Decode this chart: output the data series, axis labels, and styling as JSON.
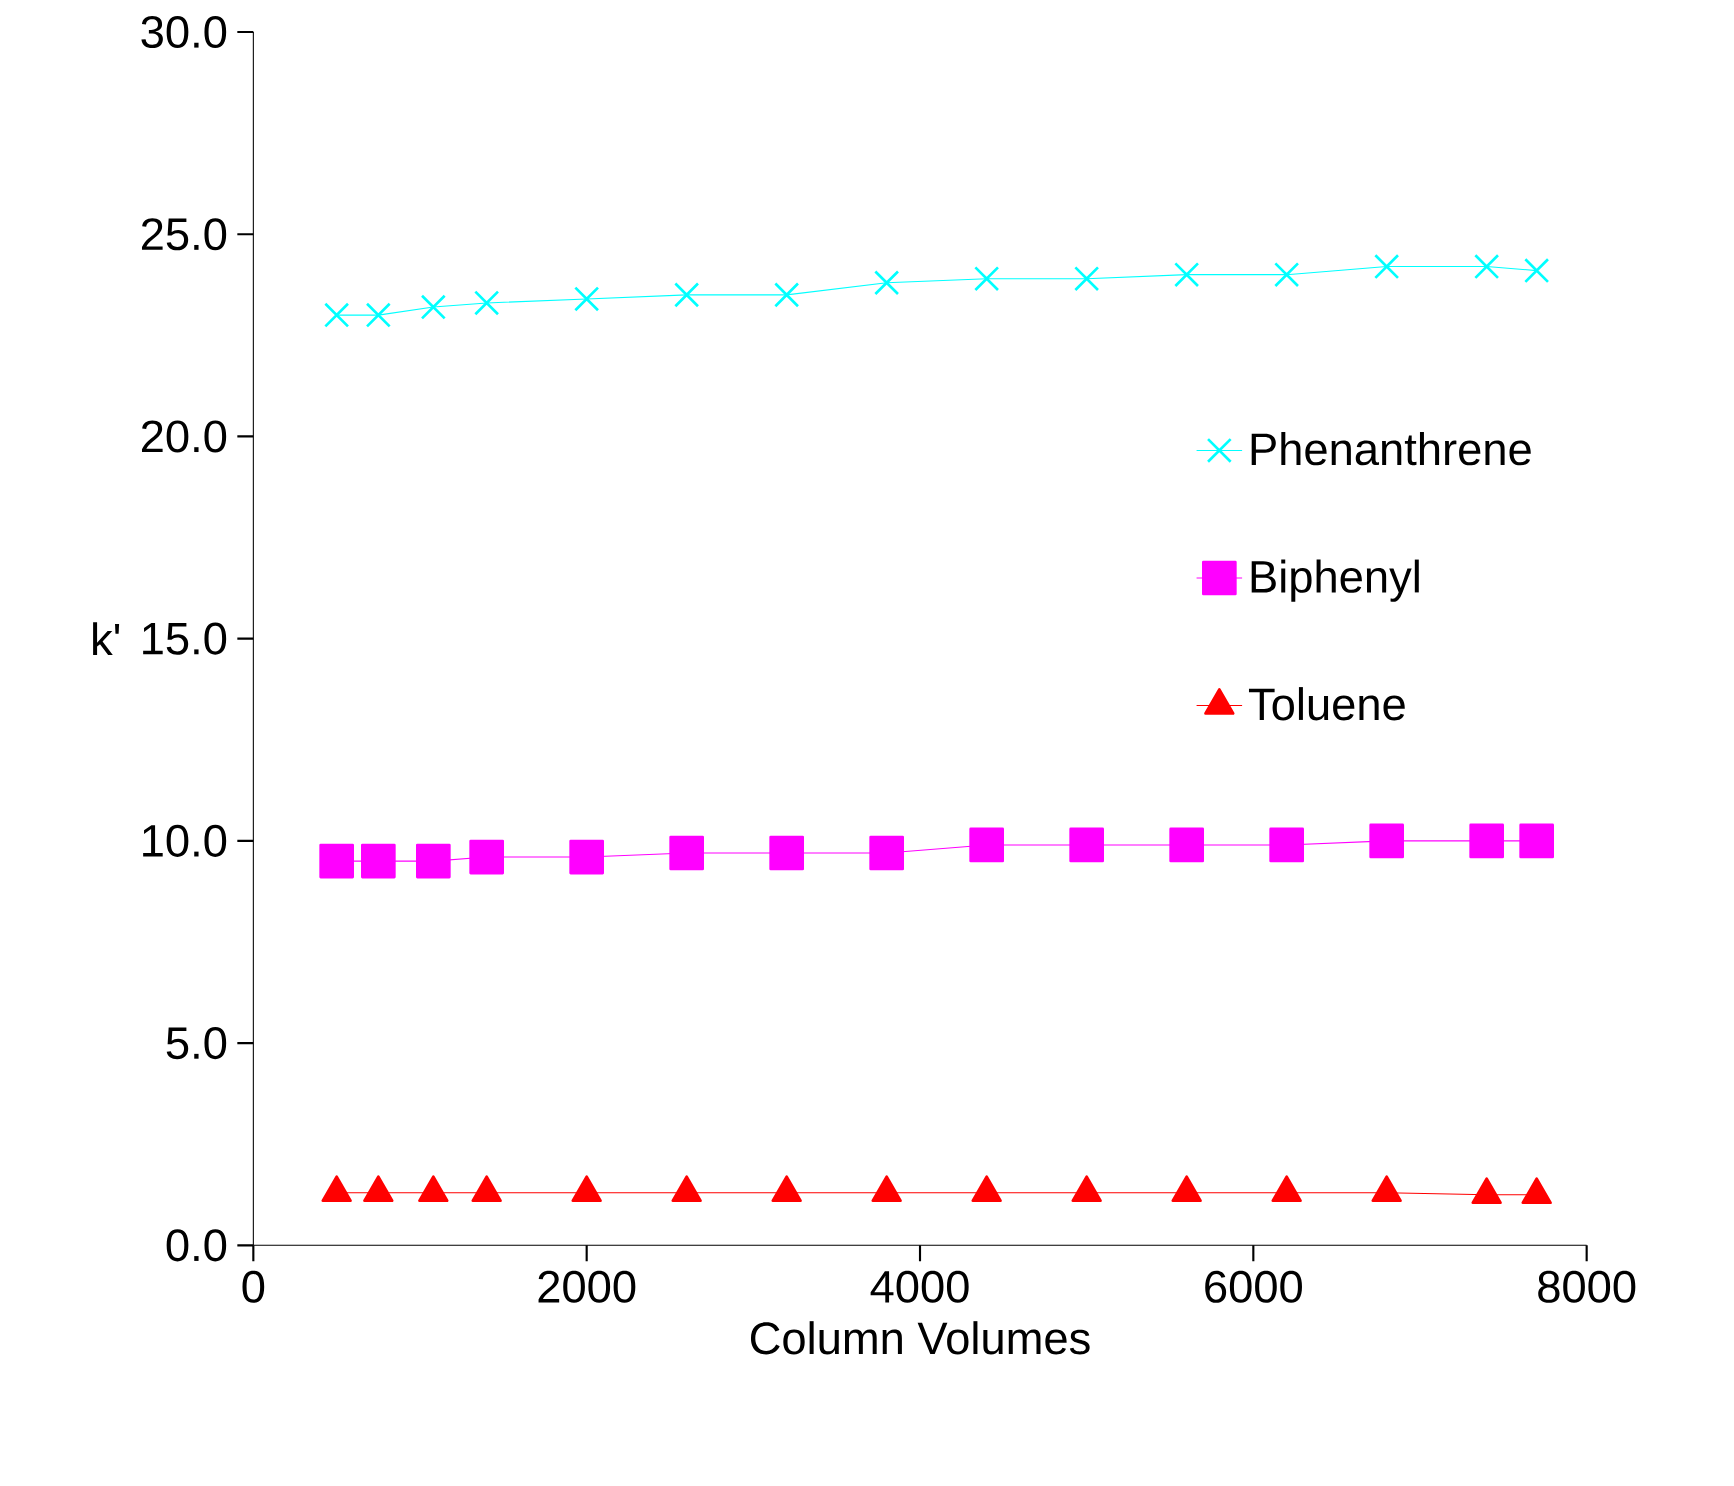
{
  "chart_data": {
    "type": "line",
    "xlabel": "Column Volumes",
    "ylabel": "k'",
    "x": [
      500,
      750,
      1080,
      1400,
      2000,
      2600,
      3200,
      3800,
      4400,
      5000,
      5600,
      6200,
      6800,
      7400,
      7700
    ],
    "xlim": [
      0,
      8000
    ],
    "xticks": [
      0,
      2000,
      4000,
      6000,
      8000
    ],
    "ylim": [
      0,
      30
    ],
    "yticks": [
      {
        "value": 0,
        "label": "0.0"
      },
      {
        "value": 5,
        "label": "5.0"
      },
      {
        "value": 10,
        "label": "10.0"
      },
      {
        "value": 15,
        "label": "15.0"
      },
      {
        "value": 20,
        "label": "20.0"
      },
      {
        "value": 25,
        "label": "25.0"
      },
      {
        "value": 30,
        "label": "30.0"
      }
    ],
    "grid": false,
    "legend": "right",
    "series": [
      {
        "name": "Phenanthrene",
        "color": "#00ffff",
        "marker": "cross",
        "values": [
          23.0,
          23.0,
          23.2,
          23.3,
          23.4,
          23.5,
          23.5,
          23.8,
          23.9,
          23.9,
          24.0,
          24.0,
          24.2,
          24.2,
          24.1
        ]
      },
      {
        "name": "Biphenyl",
        "color": "#ff00ff",
        "marker": "square",
        "values": [
          9.5,
          9.5,
          9.5,
          9.6,
          9.6,
          9.7,
          9.7,
          9.7,
          9.9,
          9.9,
          9.9,
          9.9,
          10.0,
          10.0,
          10.0
        ]
      },
      {
        "name": "Toluene",
        "color": "#ff0000",
        "marker": "triangle",
        "values": [
          1.3,
          1.3,
          1.3,
          1.3,
          1.3,
          1.3,
          1.3,
          1.3,
          1.3,
          1.3,
          1.3,
          1.3,
          1.3,
          1.25,
          1.25
        ]
      }
    ]
  }
}
